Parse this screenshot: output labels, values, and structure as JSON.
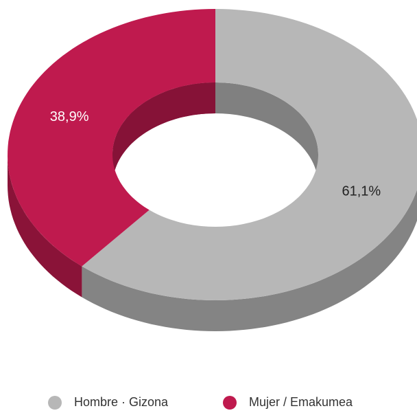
{
  "chart_data": {
    "type": "donut3d",
    "categories": [
      "Hombre · Gizona",
      "Mujer / Emakumea"
    ],
    "values": [
      61.1,
      38.9
    ],
    "value_labels": [
      "61,1%",
      "38,9%"
    ],
    "colors": [
      "#b7b7b7",
      "#bf1a4e"
    ],
    "legend": "bottom"
  }
}
